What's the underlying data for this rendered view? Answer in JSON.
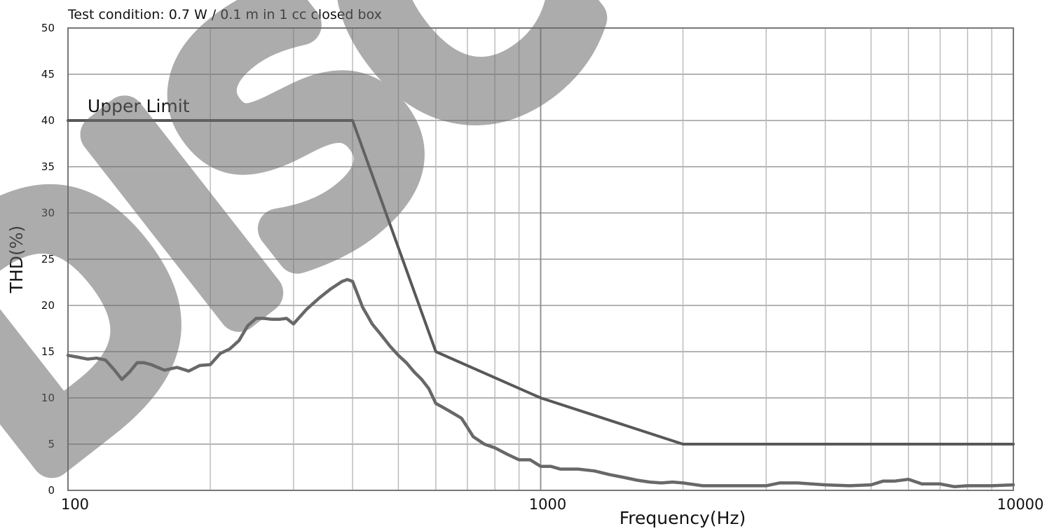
{
  "chart_data": {
    "type": "line",
    "title": "",
    "subtitle": "Test condition: 0.7 W / 0.1 m in 1 cc closed box",
    "xlabel": "Frequency(Hz)",
    "ylabel": "THD(%)",
    "xscale": "log",
    "xlim": [
      100,
      10000
    ],
    "ylim": [
      0,
      50
    ],
    "yticks": [
      "0",
      "5",
      "10",
      "15",
      "20",
      "25",
      "30",
      "35",
      "40",
      "45",
      "50"
    ],
    "xticks": [
      "100",
      "1000",
      "10000"
    ],
    "grid": true,
    "series": [
      {
        "name": "",
        "role": "upper-limit",
        "color": "#585858",
        "x": [
          100,
          400,
          600,
          1000,
          2000,
          10000
        ],
        "y": [
          40,
          40,
          15,
          10,
          5,
          5
        ]
      },
      {
        "name": "",
        "role": "measured",
        "color": "#686868",
        "x": [
          100,
          105,
          110,
          115,
          120,
          125,
          130,
          135,
          140,
          145,
          150,
          160,
          170,
          180,
          190,
          200,
          210,
          220,
          230,
          240,
          250,
          260,
          270,
          280,
          290,
          300,
          320,
          340,
          360,
          380,
          390,
          400,
          410,
          420,
          430,
          440,
          460,
          480,
          500,
          520,
          540,
          560,
          580,
          600,
          620,
          640,
          660,
          680,
          700,
          720,
          760,
          800,
          850,
          900,
          950,
          1000,
          1050,
          1100,
          1200,
          1300,
          1400,
          1500,
          1600,
          1700,
          1800,
          1900,
          2000,
          2200,
          2500,
          2800,
          3000,
          3200,
          3500,
          4000,
          4500,
          5000,
          5300,
          5600,
          6000,
          6400,
          7000,
          7500,
          8000,
          9000,
          10000
        ],
        "y": [
          14.6,
          14.4,
          14.2,
          14.3,
          14.1,
          13.1,
          12,
          12.8,
          13.8,
          13.8,
          13.6,
          13.0,
          13.3,
          12.9,
          13.5,
          13.6,
          14.8,
          15.3,
          16.2,
          17.8,
          18.6,
          18.6,
          18.5,
          18.5,
          18.6,
          18.0,
          19.6,
          20.8,
          21.8,
          22.6,
          22.8,
          22.6,
          21.2,
          19.8,
          18.9,
          18.0,
          16.8,
          15.6,
          14.6,
          13.8,
          12.8,
          12.0,
          11.0,
          9.4,
          9.0,
          8.6,
          8.2,
          7.8,
          6.8,
          5.8,
          5.0,
          4.6,
          3.9,
          3.3,
          3.3,
          2.6,
          2.6,
          2.3,
          2.3,
          2.1,
          1.7,
          1.4,
          1.1,
          0.9,
          0.8,
          0.9,
          0.8,
          0.5,
          0.5,
          0.5,
          0.5,
          0.8,
          0.8,
          0.6,
          0.5,
          0.6,
          1.0,
          1.0,
          1.2,
          0.7,
          0.7,
          0.4,
          0.5,
          0.5,
          0.6
        ]
      }
    ],
    "annotations": [
      {
        "text": "Upper Limit",
        "x": 110,
        "y": 40
      }
    ]
  }
}
